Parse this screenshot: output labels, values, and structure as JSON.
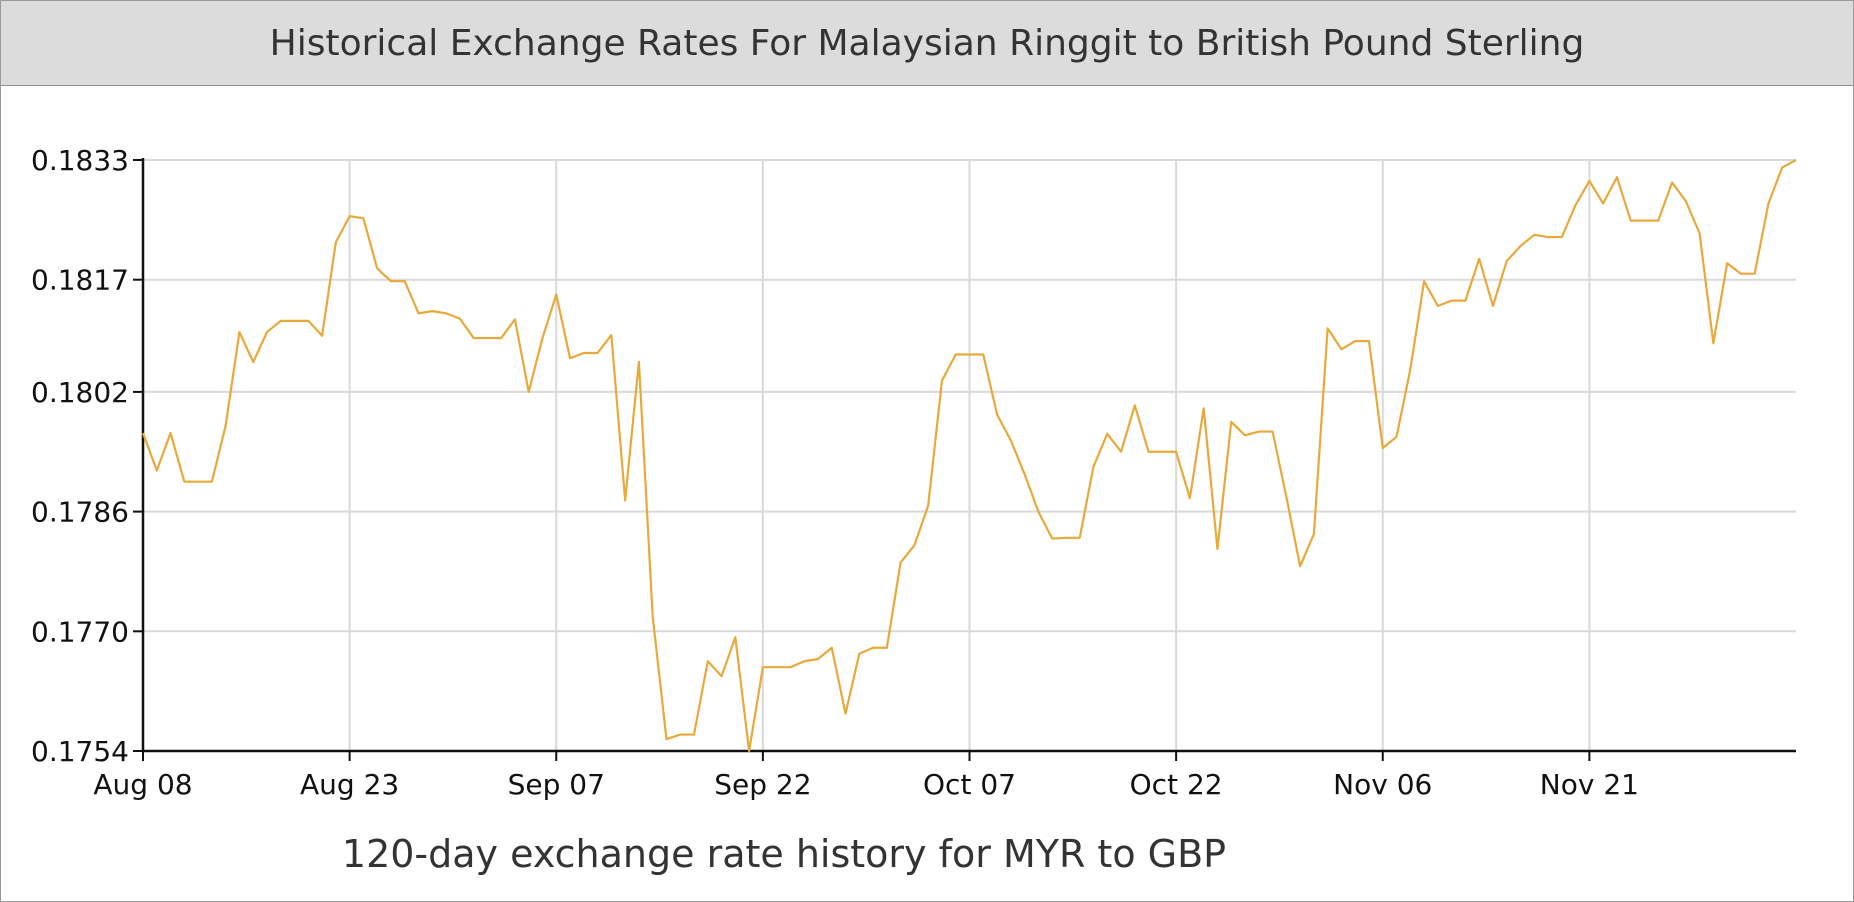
{
  "header": {
    "title": "Historical Exchange Rates For Malaysian Ringgit to British Pound Sterling"
  },
  "chart_data": {
    "type": "line",
    "title": "Historical Exchange Rates For Malaysian Ringgit to British Pound Sterling",
    "caption": "120-day exchange rate history for MYR to GBP",
    "xlabel": "",
    "ylabel": "",
    "grid": true,
    "line_color": "#e8a93a",
    "x_ticks": [
      "Aug 08",
      "Aug 23",
      "Sep 07",
      "Sep 22",
      "Oct 07",
      "Oct 22",
      "Nov 06",
      "Nov 21"
    ],
    "y_ticks": [
      "0.1754",
      "0.1770",
      "0.1786",
      "0.1802",
      "0.1817",
      "0.1833"
    ],
    "ylim": [
      0.1754,
      0.1833
    ],
    "x_range": [
      "Aug 08",
      "Dec 05"
    ],
    "series": [
      {
        "values": [
          0.17965,
          0.17915,
          0.17965,
          0.179,
          0.179,
          0.179,
          0.17975,
          0.181,
          0.1806,
          0.181,
          0.18115,
          0.18115,
          0.18115,
          0.18095,
          0.1822,
          0.18255,
          0.18252,
          0.18185,
          0.18168,
          0.18168,
          0.18125,
          0.18128,
          0.18125,
          0.18118,
          0.18092,
          0.18092,
          0.18092,
          0.18117,
          0.1802,
          0.18092,
          0.1815,
          0.18065,
          0.18072,
          0.18072,
          0.18096,
          0.17875,
          0.1806,
          0.1772,
          0.17556,
          0.17562,
          0.17562,
          0.1766,
          0.1764,
          0.17692,
          0.1754,
          0.17652,
          0.17652,
          0.17652,
          0.1766,
          0.17663,
          0.17678,
          0.1759,
          0.1767,
          0.17678,
          0.17678,
          0.17792,
          0.17815,
          0.17868,
          0.18035,
          0.1807,
          0.1807,
          0.1807,
          0.1799,
          0.17955,
          0.1791,
          0.1786,
          0.17824,
          0.17825,
          0.17825,
          0.1792,
          0.17964,
          0.1794,
          0.18002,
          0.1794,
          0.1794,
          0.1794,
          0.17878,
          0.17998,
          0.1781,
          0.1798,
          0.17962,
          0.17967,
          0.17967,
          0.1788,
          0.17787,
          0.1783,
          0.18105,
          0.18077,
          0.18088,
          0.18088,
          0.17945,
          0.1796,
          0.1805,
          0.18168,
          0.18135,
          0.18142,
          0.18142,
          0.18198,
          0.18135,
          0.18195,
          0.18215,
          0.1823,
          0.18227,
          0.18227,
          0.1827,
          0.18302,
          0.18272,
          0.18307,
          0.18249,
          0.18249,
          0.18249,
          0.183,
          0.18275,
          0.18232,
          0.18085,
          0.18192,
          0.18178,
          0.18178,
          0.18272,
          0.1832,
          0.1833
        ]
      }
    ]
  }
}
